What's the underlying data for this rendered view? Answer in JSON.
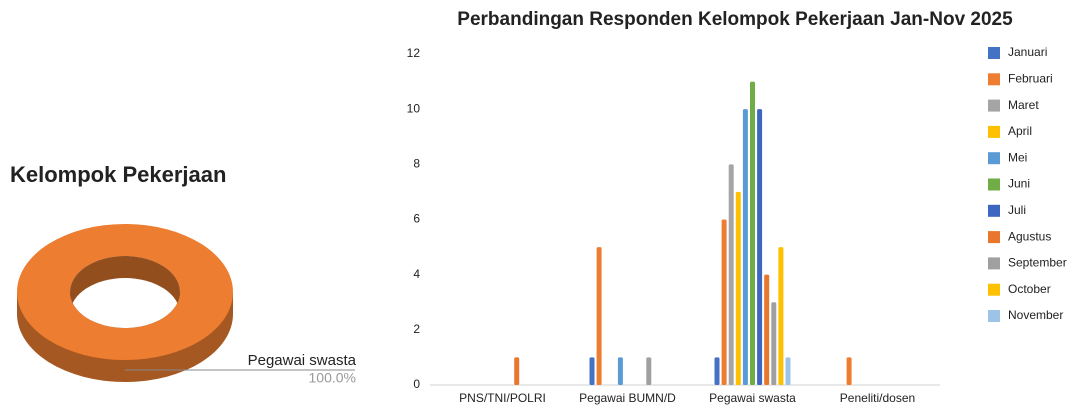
{
  "chart_data": [
    {
      "type": "pie",
      "title": "Kelompok Pekerjaan",
      "categories": [
        "Pegawai swasta"
      ],
      "values": [
        100
      ],
      "value_labels": [
        "100.0%"
      ],
      "colors": [
        "#ed7d31"
      ]
    },
    {
      "type": "bar",
      "title": "Perbandingan Responden Kelompok Pekerjaan Jan-Nov 2025",
      "categories": [
        "PNS/TNI/POLRI",
        "Pegawai BUMN/D",
        "Pegawai swasta",
        "Peneliti/dosen"
      ],
      "series": [
        {
          "name": "Januari",
          "color": "#4472c4",
          "values": [
            0,
            1,
            1,
            0
          ]
        },
        {
          "name": "Februari",
          "color": "#ed7d31",
          "values": [
            0,
            5,
            6,
            1
          ]
        },
        {
          "name": "Maret",
          "color": "#a5a5a5",
          "values": [
            0,
            0,
            8,
            0
          ]
        },
        {
          "name": "April",
          "color": "#ffc000",
          "values": [
            0,
            0,
            7,
            0
          ]
        },
        {
          "name": "Mei",
          "color": "#5b9bd5",
          "values": [
            0,
            1,
            10,
            0
          ]
        },
        {
          "name": "Juni",
          "color": "#70ad47",
          "values": [
            0,
            0,
            11,
            0
          ]
        },
        {
          "name": "Juli",
          "color": "#3d66c0",
          "values": [
            0,
            0,
            10,
            0
          ]
        },
        {
          "name": "Agustus",
          "color": "#e8762c",
          "values": [
            1,
            0,
            4,
            0
          ]
        },
        {
          "name": "September",
          "color": "#a0a0a0",
          "values": [
            0,
            1,
            3,
            0
          ]
        },
        {
          "name": "October",
          "color": "#ffc000",
          "values": [
            0,
            0,
            5,
            0
          ]
        },
        {
          "name": "November",
          "color": "#9dc3e6",
          "values": [
            0,
            0,
            1,
            0
          ]
        }
      ],
      "ylim": [
        0,
        12
      ],
      "yticks": [
        0,
        2,
        4,
        6,
        8,
        10,
        12
      ],
      "grid": false,
      "legend": "right"
    }
  ]
}
